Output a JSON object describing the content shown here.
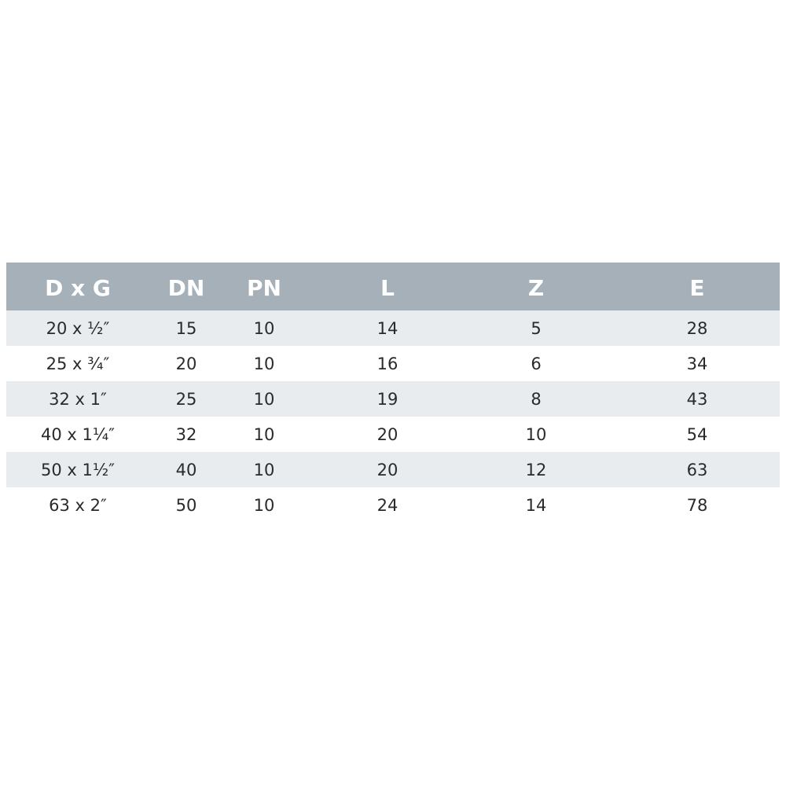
{
  "table": {
    "headers": [
      "D x G",
      "DN",
      "PN",
      "L",
      "Z",
      "E"
    ],
    "rows": [
      [
        "20 x ½″",
        "15",
        "10",
        "14",
        "5",
        "28"
      ],
      [
        "25 x ¾″",
        "20",
        "10",
        "16",
        "6",
        "34"
      ],
      [
        "32 x 1″",
        "25",
        "10",
        "19",
        "8",
        "43"
      ],
      [
        "40 x 1¼″",
        "32",
        "10",
        "20",
        "10",
        "54"
      ],
      [
        "50 x 1½″",
        "40",
        "10",
        "20",
        "12",
        "63"
      ],
      [
        "63 x 2″",
        "50",
        "10",
        "24",
        "14",
        "78"
      ]
    ],
    "header_color": "#a5b0b8",
    "stripe_color": "#e8ecef"
  }
}
